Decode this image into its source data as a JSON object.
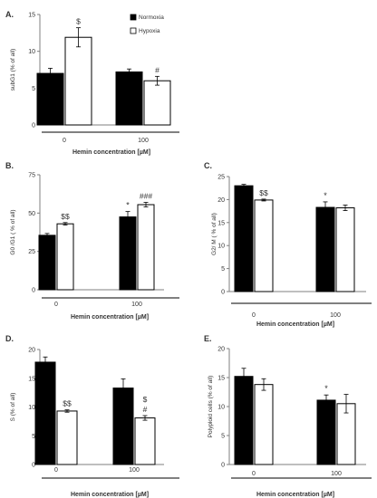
{
  "legend": {
    "normoxia": "Normoxia",
    "hypoxia": "Hypoxia"
  },
  "colors": {
    "normoxia": "#000000",
    "hypoxia": "#ffffff",
    "edge": "#000000",
    "axis": "#7f7f7f"
  },
  "chart_data": [
    {
      "panel": "A.",
      "type": "bar",
      "ylabel": "subG1 (% of all)",
      "xlabel": "Hemin concentration [µM]",
      "categories": [
        "0",
        "100"
      ],
      "ylim": [
        0,
        15
      ],
      "yticks": [
        0,
        5,
        10,
        15
      ],
      "legend_position": "top-right",
      "series": [
        {
          "name": "Normoxia",
          "values": [
            7.0,
            7.2
          ],
          "errors": [
            0.7,
            0.4
          ],
          "annotations": [
            "",
            ""
          ]
        },
        {
          "name": "Hypoxia",
          "values": [
            11.9,
            6.0
          ],
          "errors": [
            1.3,
            0.6
          ],
          "annotations": [
            "$",
            "#"
          ]
        }
      ]
    },
    {
      "panel": "B.",
      "type": "bar",
      "ylabel": "G0 /G1 ( % of all)",
      "xlabel": "Hemin concentration [µM]",
      "categories": [
        "0",
        "100"
      ],
      "ylim": [
        0,
        75
      ],
      "yticks": [
        0,
        25,
        50,
        75
      ],
      "series": [
        {
          "name": "Normoxia",
          "values": [
            35.5,
            47.5
          ],
          "errors": [
            1.2,
            3.5
          ],
          "annotations": [
            "",
            "*"
          ]
        },
        {
          "name": "Hypoxia",
          "values": [
            43.0,
            55.5
          ],
          "errors": [
            0.8,
            1.5
          ],
          "annotations": [
            "$$",
            "###"
          ]
        }
      ]
    },
    {
      "panel": "C.",
      "type": "bar",
      "ylabel": "G2/ M ( % of all)",
      "xlabel": "Hemin concentration [µM]",
      "categories": [
        "0",
        "100"
      ],
      "ylim": [
        0,
        25
      ],
      "yticks": [
        0,
        5,
        10,
        15,
        20,
        25
      ],
      "series": [
        {
          "name": "Normoxia",
          "values": [
            23.0,
            18.3
          ],
          "errors": [
            0.3,
            1.2
          ],
          "annotations": [
            "",
            "*"
          ]
        },
        {
          "name": "Hypoxia",
          "values": [
            19.9,
            18.2
          ],
          "errors": [
            0.2,
            0.6
          ],
          "annotations": [
            "$$",
            ""
          ]
        }
      ]
    },
    {
      "panel": "D.",
      "type": "bar",
      "ylabel": "S (% of all)",
      "xlabel": "Hemin concentration [µM]",
      "categories": [
        "0",
        "100"
      ],
      "ylim": [
        0,
        20
      ],
      "yticks": [
        0,
        5,
        10,
        15,
        20
      ],
      "series": [
        {
          "name": "Normoxia",
          "values": [
            17.8,
            13.3
          ],
          "errors": [
            0.9,
            1.6
          ],
          "annotations": [
            "",
            ""
          ]
        },
        {
          "name": "Hypoxia",
          "values": [
            9.3,
            8.1
          ],
          "errors": [
            0.2,
            0.4
          ],
          "annotations": [
            "$$",
            "$\n#"
          ]
        }
      ]
    },
    {
      "panel": "E.",
      "type": "bar",
      "ylabel": "Polyploid cells (% of all)",
      "xlabel": "Hemin concentration [µM]",
      "categories": [
        "0",
        "100"
      ],
      "ylim": [
        0,
        20
      ],
      "yticks": [
        0,
        5,
        10,
        15,
        20
      ],
      "series": [
        {
          "name": "Normoxia",
          "values": [
            15.2,
            11.1
          ],
          "errors": [
            1.4,
            0.9
          ],
          "annotations": [
            "",
            "*"
          ]
        },
        {
          "name": "Hypoxia",
          "values": [
            13.8,
            10.5
          ],
          "errors": [
            1.0,
            1.6
          ],
          "annotations": [
            "",
            ""
          ]
        }
      ]
    }
  ]
}
